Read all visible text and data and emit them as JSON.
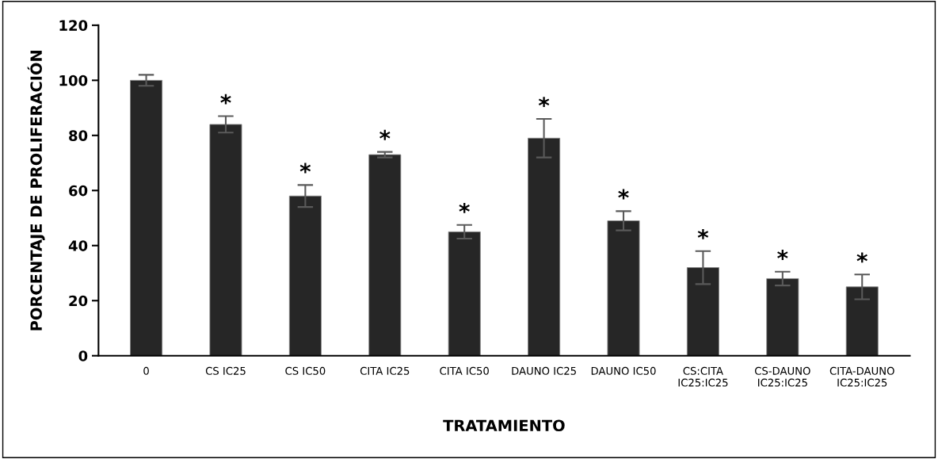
{
  "chart_data": {
    "type": "bar",
    "xlabel": "TRATAMIENTO",
    "ylabel": "PORCENTAJE DE PROLIFERACIÓN",
    "categories": [
      "0",
      "CS IC25",
      "CS IC50",
      "CITA IC25",
      "CITA IC50",
      "DAUNO IC25",
      "DAUNO IC50",
      "CS:CITA\nIC25:IC25",
      "CS-DAUNO\nIC25:IC25",
      "CITA-DAUNO\nIC25:IC25"
    ],
    "values": [
      100,
      84,
      58,
      73,
      45,
      79,
      49,
      32,
      28,
      25
    ],
    "errors": [
      2,
      3,
      4,
      1,
      2.5,
      7,
      3.5,
      6,
      2.5,
      4.5
    ],
    "color": "#262626",
    "ylim": [
      0,
      120
    ],
    "yticks": [
      0,
      20,
      40,
      60,
      80,
      100,
      120
    ],
    "grid": false,
    "annotations": [
      {
        "text": "*",
        "x": "CS IC25",
        "y": 87
      },
      {
        "text": "*",
        "x": "CS IC50",
        "y": 62
      },
      {
        "text": "*",
        "x": "CITA IC25",
        "y": 74
      },
      {
        "text": "*",
        "x": "CITA IC50",
        "y": 47.5
      },
      {
        "text": "*",
        "x": "DAUNO IC25",
        "y": 86
      },
      {
        "text": "*",
        "x": "DAUNO IC50",
        "y": 52.5
      },
      {
        "text": "*",
        "x": "CS:CITA\nIC25:IC25",
        "y": 38
      },
      {
        "text": "*",
        "x": "CS-DAUNO\nIC25:IC25",
        "y": 30.5
      },
      {
        "text": "*",
        "x": "CITA-DAUNO\nIC25:IC25",
        "y": 29.5
      }
    ]
  }
}
